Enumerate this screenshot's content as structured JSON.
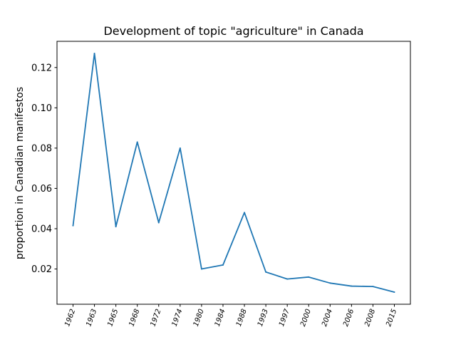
{
  "chart_data": {
    "type": "line",
    "title": "Development of topic \"agriculture\" in Canada",
    "xlabel": "",
    "ylabel": "proportion in Canadian manifestos",
    "categories": [
      "1962",
      "1963",
      "1965",
      "1968",
      "1972",
      "1974",
      "1980",
      "1984",
      "1988",
      "1993",
      "1997",
      "2000",
      "2004",
      "2006",
      "2008",
      "2015"
    ],
    "series": [
      {
        "values": [
          0.0415,
          0.127,
          0.041,
          0.083,
          0.043,
          0.08,
          0.02,
          0.022,
          0.048,
          0.0185,
          0.015,
          0.016,
          0.013,
          0.0115,
          0.0113,
          0.0085
        ],
        "color": "#1f77b4"
      }
    ],
    "yticks": [
      0.02,
      0.04,
      0.06,
      0.08,
      0.1,
      0.12
    ],
    "ytick_labels": [
      "0.02",
      "0.04",
      "0.06",
      "0.08",
      "0.10",
      "0.12"
    ],
    "ylim": [
      0.0025,
      0.133
    ],
    "grid": false,
    "legend": "none"
  }
}
